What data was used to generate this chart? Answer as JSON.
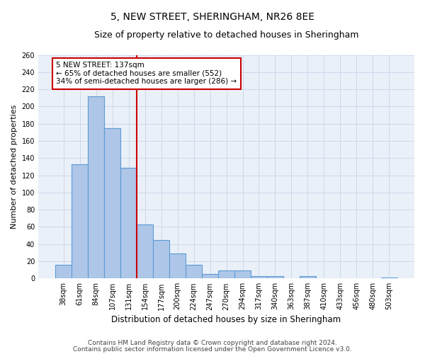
{
  "title": "5, NEW STREET, SHERINGHAM, NR26 8EE",
  "subtitle": "Size of property relative to detached houses in Sheringham",
  "xlabel": "Distribution of detached houses by size in Sheringham",
  "ylabel": "Number of detached properties",
  "categories": [
    "38sqm",
    "61sqm",
    "84sqm",
    "107sqm",
    "131sqm",
    "154sqm",
    "177sqm",
    "200sqm",
    "224sqm",
    "247sqm",
    "270sqm",
    "294sqm",
    "317sqm",
    "340sqm",
    "363sqm",
    "387sqm",
    "410sqm",
    "433sqm",
    "456sqm",
    "480sqm",
    "503sqm"
  ],
  "values": [
    16,
    133,
    212,
    175,
    129,
    63,
    45,
    29,
    16,
    5,
    9,
    9,
    3,
    3,
    0,
    3,
    0,
    0,
    0,
    0,
    1
  ],
  "bar_color": "#aec6e8",
  "bar_edge_color": "#5b9bd5",
  "bar_linewidth": 0.8,
  "vline_x": 4.5,
  "vline_color": "#cc0000",
  "ann_line1": "5 NEW STREET: 137sqm",
  "ann_line2": "← 65% of detached houses are smaller (552)",
  "ann_line3": "34% of semi-detached houses are larger (286) →",
  "annotation_box_edge_color": "#cc0000",
  "annotation_box_facecolor": "#ffffff",
  "ylim": [
    0,
    260
  ],
  "yticks": [
    0,
    20,
    40,
    60,
    80,
    100,
    120,
    140,
    160,
    180,
    200,
    220,
    240,
    260
  ],
  "grid_color": "#c8d4e8",
  "background_color": "#eaf0f8",
  "footer_line1": "Contains HM Land Registry data © Crown copyright and database right 2024.",
  "footer_line2": "Contains public sector information licensed under the Open Government Licence v3.0.",
  "title_fontsize": 10,
  "subtitle_fontsize": 9,
  "xlabel_fontsize": 8.5,
  "ylabel_fontsize": 8,
  "tick_fontsize": 7,
  "annotation_fontsize": 7.5,
  "footer_fontsize": 6.5
}
